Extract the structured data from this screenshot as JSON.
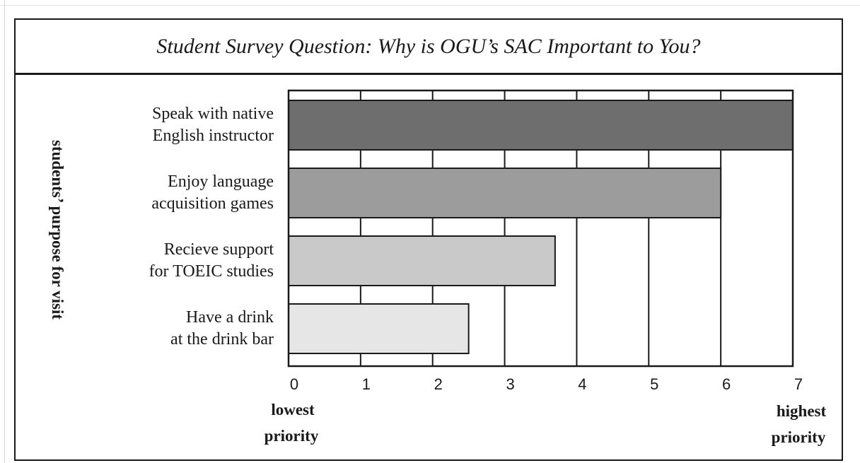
{
  "chart_data": {
    "type": "bar",
    "orientation": "horizontal",
    "title": "Student Survey Question: Why is OGU’s SAC Important to You?",
    "ylabel": "students’ purpose for visit",
    "xlabel_low": [
      "lowest",
      "priority"
    ],
    "xlabel_high": [
      "highest",
      "priority"
    ],
    "xlim": [
      0,
      7
    ],
    "xticks": [
      "0",
      "1",
      "2",
      "3",
      "4",
      "5",
      "6",
      "7"
    ],
    "grid": true,
    "categories": [
      [
        "Speak with native",
        "English instructor"
      ],
      [
        "Enjoy language",
        "acquisition games"
      ],
      [
        "Recieve support",
        "for TOEIC studies"
      ],
      [
        "Have a drink",
        "at the drink bar"
      ]
    ],
    "values": [
      7,
      6,
      3.7,
      2.5
    ],
    "colors": [
      "#6e6e6e",
      "#9c9c9c",
      "#c9c9c9",
      "#e6e6e6"
    ]
  }
}
